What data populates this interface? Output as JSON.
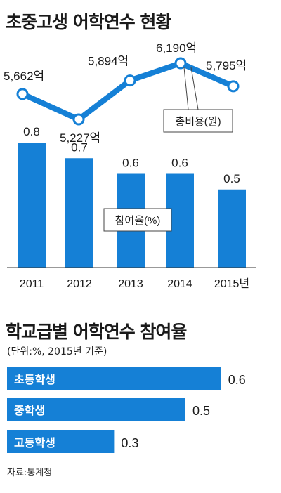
{
  "title1": "초중고생 어학연수 현황",
  "title2": "학교급별 어학연수 참여율",
  "subtitle2": "(단위:%, 2015년 기준)",
  "source": "자료:통계청",
  "colors": {
    "accent": "#1580d6",
    "text": "#1a1a1a",
    "axis": "#333333"
  },
  "chart_data": [
    {
      "type": "bar+line",
      "categories": [
        "2011",
        "2012",
        "2013",
        "2014",
        "2015년"
      ],
      "series": [
        {
          "name": "참여율(%)",
          "kind": "bar",
          "values": [
            0.8,
            0.7,
            0.6,
            0.6,
            0.5
          ],
          "labels": [
            "0.8",
            "0.7",
            "0.6",
            "0.6",
            "0.5"
          ]
        },
        {
          "name": "총비용(원)",
          "kind": "line",
          "values": [
            5662,
            5227,
            5894,
            6190,
            5795
          ],
          "labels": [
            "5,662억",
            "5,227억",
            "5,894억",
            "6,190억",
            "5,795억"
          ]
        }
      ]
    },
    {
      "type": "bar",
      "orientation": "horizontal",
      "categories": [
        "초등학생",
        "중학생",
        "고등학생"
      ],
      "values": [
        0.6,
        0.5,
        0.3
      ],
      "labels": [
        "0.6",
        "0.5",
        "0.3"
      ]
    }
  ]
}
